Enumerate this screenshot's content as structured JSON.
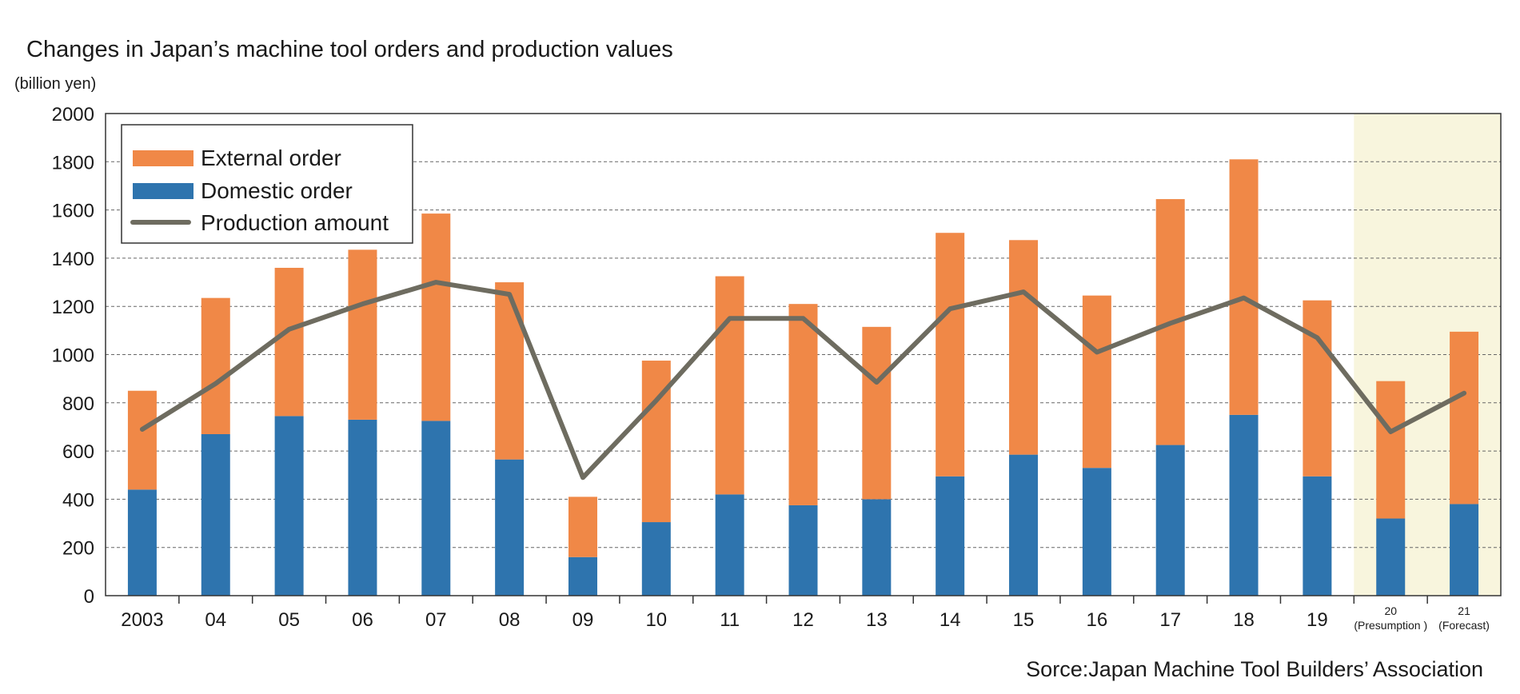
{
  "chart_data": {
    "type": "bar",
    "stacked": true,
    "title": "Changes in Japan’s machine tool orders and production values",
    "ylabel": "(billion yen)",
    "ylim": [
      0,
      2000
    ],
    "yticks": [
      0,
      200,
      400,
      600,
      800,
      1000,
      1200,
      1400,
      1600,
      1800,
      2000
    ],
    "categories": [
      "2003",
      "04",
      "05",
      "06",
      "07",
      "08",
      "09",
      "10",
      "11",
      "12",
      "13",
      "14",
      "15",
      "16",
      "17",
      "18",
      "19",
      "20",
      "21"
    ],
    "category_notes": [
      "",
      "",
      "",
      "",
      "",
      "",
      "",
      "",
      "",
      "",
      "",
      "",
      "",
      "",
      "",
      "",
      "",
      "(Presumption )",
      "(Forecast)"
    ],
    "highlight_categories": [
      "20",
      "21"
    ],
    "series": [
      {
        "name": "Domestic order",
        "kind": "bar",
        "color": "#2e74ae",
        "values": [
          440,
          670,
          745,
          730,
          725,
          565,
          160,
          305,
          420,
          375,
          400,
          495,
          585,
          530,
          625,
          750,
          495,
          320,
          380
        ]
      },
      {
        "name": "External order",
        "kind": "bar",
        "color": "#f08847",
        "values": [
          410,
          565,
          615,
          705,
          860,
          735,
          250,
          670,
          905,
          835,
          715,
          1010,
          890,
          715,
          1020,
          1060,
          730,
          570,
          715
        ]
      },
      {
        "name": "Production amount",
        "kind": "line",
        "color": "#6e6c60",
        "values": [
          690,
          880,
          1105,
          1210,
          1300,
          1250,
          490,
          810,
          1150,
          1150,
          885,
          1190,
          1260,
          1010,
          1130,
          1235,
          1070,
          680,
          840
        ]
      }
    ],
    "legend": [
      "External order",
      "Domestic order",
      "Production amount"
    ],
    "legend_position": "top-left",
    "grid": "dashed horizontal",
    "highlight_color": "#f8f5dd",
    "source": "Sorce:Japan Machine Tool Builders’ Association"
  }
}
